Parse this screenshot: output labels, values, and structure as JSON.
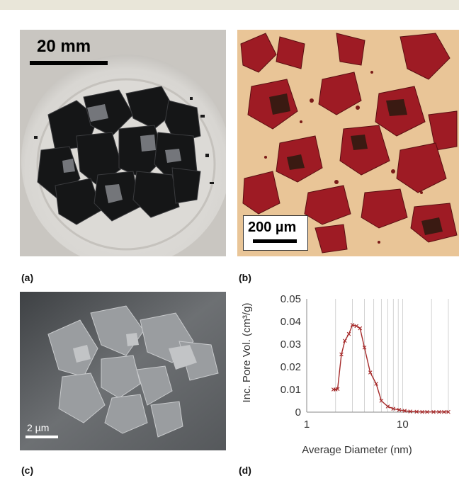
{
  "panels": {
    "a": {
      "label": "(a)",
      "scale_bar": "20 mm"
    },
    "b": {
      "label": "(b)",
      "scale_bar": "200 µm"
    },
    "c": {
      "label": "(c)",
      "scale_bar": "2 µm"
    },
    "d": {
      "label": "(d)"
    }
  },
  "chart_data": {
    "type": "line",
    "xlabel": "Average Diameter (nm)",
    "ylabel": "Inc. Pore Vol. (cm³/g)",
    "x_scale": "log",
    "xlim": [
      1,
      30
    ],
    "ylim": [
      0,
      0.05
    ],
    "x_ticks": [
      "1",
      "10"
    ],
    "y_ticks": [
      "0",
      "0.01",
      "0.02",
      "0.03",
      "0.04",
      "0.05"
    ],
    "grid": "vertical",
    "series_color": "#a52a2a",
    "x": [
      1.9,
      2.0,
      2.1,
      2.3,
      2.5,
      2.75,
      3.0,
      3.3,
      3.6,
      4.0,
      4.6,
      5.3,
      6.0,
      7.0,
      8.0,
      9.2,
      10.5,
      12.0,
      14.0,
      16.0,
      18.0,
      21.0,
      24.0,
      27.0,
      30.0
    ],
    "y": [
      0.01,
      0.01,
      0.0102,
      0.0255,
      0.0315,
      0.0345,
      0.0385,
      0.038,
      0.037,
      0.0285,
      0.0175,
      0.0125,
      0.005,
      0.0025,
      0.0015,
      0.001,
      0.0006,
      0.0003,
      0.0002,
      0.0001,
      0.0001,
      0.0001,
      0.0001,
      0.0001,
      0.0001
    ]
  }
}
